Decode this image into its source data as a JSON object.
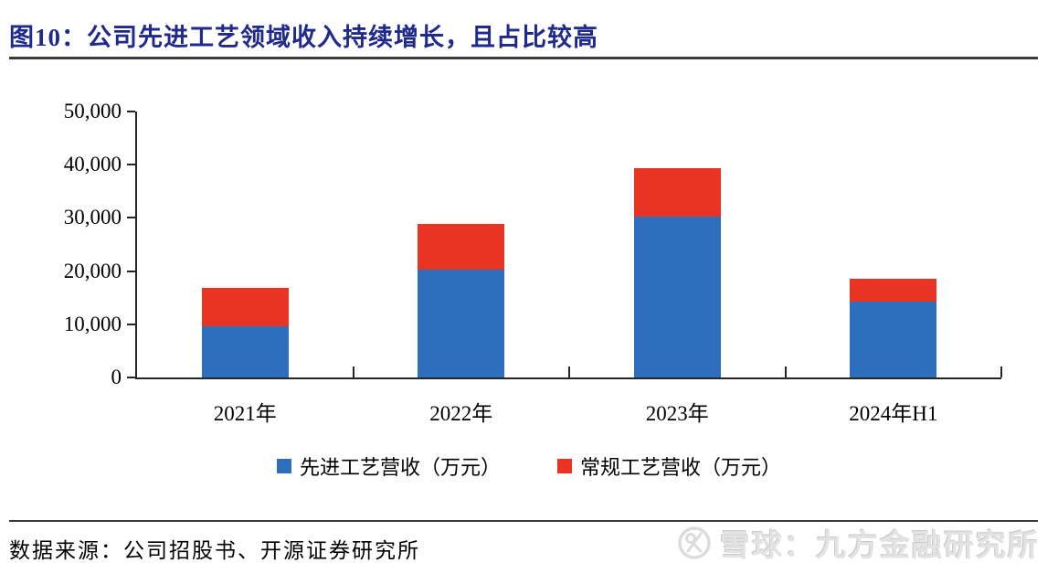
{
  "figure": {
    "title": "图10：公司先进工艺领域收入持续增长，且占比较高",
    "source": "数据来源：公司招股书、开源证券研究所",
    "watermark": "雪球：九方金融研究所"
  },
  "colors": {
    "title_navy": "#1f2a8c",
    "axis": "#262626",
    "rule": "#3a3a3a",
    "series_blue": "#2e6fbd",
    "series_red": "#e93323",
    "watermark_gray": "#e3e3e3"
  },
  "chart_data": {
    "type": "bar",
    "stacked": true,
    "grid": false,
    "legend_position": "bottom",
    "categories": [
      "2021年",
      "2022年",
      "2023年",
      "2024年H1"
    ],
    "series": [
      {
        "name": "先进工艺营收（万元）",
        "color": "#2e6fbd",
        "values": [
          9600,
          20300,
          30300,
          14300
        ]
      },
      {
        "name": "常规工艺营收（万元）",
        "color": "#e93323",
        "values": [
          7200,
          8600,
          9100,
          4200
        ]
      }
    ],
    "totals": [
      16800,
      28900,
      39400,
      18500
    ],
    "ylim": [
      0,
      50000
    ],
    "y_ticks": [
      {
        "value": 0,
        "label": "0"
      },
      {
        "value": 10000,
        "label": "10,000"
      },
      {
        "value": 20000,
        "label": "20,000"
      },
      {
        "value": 30000,
        "label": "30,000"
      },
      {
        "value": 40000,
        "label": "40,000"
      },
      {
        "value": 50000,
        "label": "50,000"
      }
    ],
    "xlabel": "",
    "ylabel": ""
  }
}
